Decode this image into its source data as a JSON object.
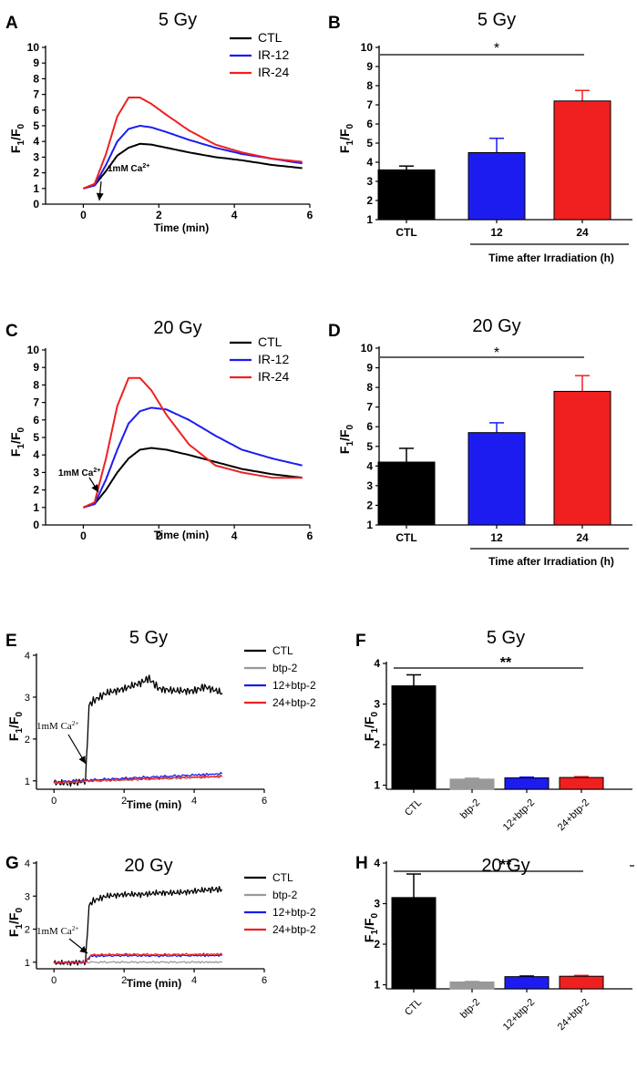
{
  "colors": {
    "ctl": "#000000",
    "ir12": "#1c1cf0",
    "ir24": "#f02020",
    "btp2": "#999999"
  },
  "chart_data": [
    {
      "panel": "A",
      "type": "line",
      "title": "5 Gy",
      "xlabel": "Time (min)",
      "ylabel": "F1/F0",
      "xlim": [
        -1,
        6
      ],
      "ylim": [
        0,
        10
      ],
      "xticks": [
        0,
        2,
        4,
        6
      ],
      "yticks": [
        0,
        1,
        2,
        3,
        4,
        5,
        6,
        7,
        8,
        9,
        10
      ],
      "annotation": "1mM Ca2+",
      "series": [
        {
          "name": "CTL",
          "color": "#000000",
          "x": [
            0,
            0.3,
            0.6,
            0.9,
            1.2,
            1.5,
            1.8,
            2.2,
            2.8,
            3.5,
            4.2,
            5,
            5.8
          ],
          "y": [
            1,
            1.2,
            2.1,
            3.1,
            3.6,
            3.85,
            3.8,
            3.6,
            3.3,
            3.0,
            2.8,
            2.5,
            2.3
          ]
        },
        {
          "name": "IR-12",
          "color": "#1c1cf0",
          "x": [
            0,
            0.3,
            0.6,
            0.9,
            1.2,
            1.5,
            1.8,
            2.2,
            2.8,
            3.5,
            4.2,
            5,
            5.8
          ],
          "y": [
            1,
            1.2,
            2.5,
            4.0,
            4.8,
            5.0,
            4.9,
            4.6,
            4.1,
            3.6,
            3.2,
            2.9,
            2.6
          ]
        },
        {
          "name": "IR-24",
          "color": "#f02020",
          "x": [
            0,
            0.3,
            0.6,
            0.9,
            1.2,
            1.5,
            1.8,
            2.2,
            2.8,
            3.5,
            4.2,
            5,
            5.8
          ],
          "y": [
            1,
            1.3,
            3.2,
            5.6,
            6.8,
            6.8,
            6.4,
            5.7,
            4.7,
            3.8,
            3.3,
            2.9,
            2.7
          ]
        }
      ]
    },
    {
      "panel": "B",
      "type": "bar",
      "title": "5 Gy",
      "ylabel": "F1/F0",
      "ylim": [
        1,
        10
      ],
      "yticks": [
        1,
        2,
        3,
        4,
        5,
        6,
        7,
        8,
        9,
        10
      ],
      "categories": [
        "CTL",
        "12",
        "24"
      ],
      "values": [
        3.6,
        4.5,
        7.2
      ],
      "errors": [
        0.2,
        0.75,
        0.55
      ],
      "bar_colors": [
        "#000000",
        "#1c1cf0",
        "#f02020"
      ],
      "xlabel": "Time after Irradiation (h)",
      "significance": "*"
    },
    {
      "panel": "C",
      "type": "line",
      "title": "20 Gy",
      "xlabel": "Time (min)",
      "ylabel": "F1/F0",
      "xlim": [
        -1,
        6
      ],
      "ylim": [
        0,
        10
      ],
      "xticks": [
        0,
        2,
        4,
        6
      ],
      "yticks": [
        0,
        1,
        2,
        3,
        4,
        5,
        6,
        7,
        8,
        9,
        10
      ],
      "annotation": "1mM Ca2+",
      "series": [
        {
          "name": "CTL",
          "color": "#000000",
          "x": [
            0,
            0.3,
            0.6,
            0.9,
            1.2,
            1.5,
            1.8,
            2.2,
            2.8,
            3.5,
            4.2,
            5,
            5.8
          ],
          "y": [
            1,
            1.2,
            2.0,
            3.0,
            3.8,
            4.3,
            4.4,
            4.3,
            4.0,
            3.6,
            3.2,
            2.9,
            2.7
          ]
        },
        {
          "name": "IR-12",
          "color": "#1c1cf0",
          "x": [
            0,
            0.3,
            0.6,
            0.9,
            1.2,
            1.5,
            1.8,
            2.2,
            2.8,
            3.5,
            4.2,
            5,
            5.8
          ],
          "y": [
            1,
            1.2,
            2.6,
            4.3,
            5.8,
            6.5,
            6.7,
            6.6,
            6.0,
            5.1,
            4.3,
            3.8,
            3.4
          ]
        },
        {
          "name": "IR-24",
          "color": "#f02020",
          "x": [
            0,
            0.3,
            0.6,
            0.9,
            1.2,
            1.5,
            1.8,
            2.2,
            2.8,
            3.5,
            4.2,
            5,
            5.8
          ],
          "y": [
            1,
            1.3,
            3.8,
            6.8,
            8.4,
            8.4,
            7.7,
            6.3,
            4.6,
            3.4,
            3.0,
            2.7,
            2.7
          ]
        }
      ]
    },
    {
      "panel": "D",
      "type": "bar",
      "title": "20 Gy",
      "ylabel": "F1/F0",
      "ylim": [
        1,
        10
      ],
      "yticks": [
        1,
        2,
        3,
        4,
        5,
        6,
        7,
        8,
        9,
        10
      ],
      "categories": [
        "CTL",
        "12",
        "24"
      ],
      "values": [
        4.2,
        5.7,
        7.8
      ],
      "errors": [
        0.7,
        0.5,
        0.8
      ],
      "bar_colors": [
        "#000000",
        "#1c1cf0",
        "#f02020"
      ],
      "xlabel": "Time after Irradiation (h)",
      "significance": "*"
    },
    {
      "panel": "E",
      "type": "line",
      "title": "5 Gy",
      "xlabel": "Time (min)",
      "ylabel": "F1/F0",
      "xlim": [
        -0.5,
        6
      ],
      "ylim": [
        0.8,
        4
      ],
      "xticks": [
        0,
        2,
        4,
        6
      ],
      "yticks": [
        1,
        2,
        3,
        4
      ],
      "annotation": "1mM Ca2+",
      "series": [
        {
          "name": "CTL",
          "color": "#000000",
          "x": [
            0,
            0.5,
            0.9,
            1.0,
            1.1,
            1.5,
            2.0,
            2.5,
            2.7,
            3.0,
            3.5,
            4.0,
            4.3,
            4.8
          ],
          "y": [
            0.95,
            0.95,
            1.0,
            2.8,
            2.9,
            3.1,
            3.2,
            3.35,
            3.45,
            3.2,
            3.15,
            3.15,
            3.25,
            3.1
          ]
        },
        {
          "name": "btp-2",
          "color": "#999999",
          "x": [
            0,
            1,
            2,
            3,
            4,
            4.8
          ],
          "y": [
            0.95,
            1.0,
            1.02,
            1.05,
            1.08,
            1.1
          ]
        },
        {
          "name": "12+btp-2",
          "color": "#1c1cf0",
          "x": [
            0,
            1,
            2,
            3,
            4,
            4.8
          ],
          "y": [
            0.97,
            1.02,
            1.06,
            1.1,
            1.14,
            1.17
          ]
        },
        {
          "name": "24+btp-2",
          "color": "#f02020",
          "x": [
            0,
            1,
            2,
            3,
            4,
            4.8
          ],
          "y": [
            0.96,
            1.0,
            1.03,
            1.06,
            1.09,
            1.11
          ]
        }
      ]
    },
    {
      "panel": "F",
      "type": "bar",
      "title": "5 Gy",
      "ylabel": "F1/F0",
      "ylim": [
        0.9,
        4
      ],
      "yticks": [
        1,
        2,
        3,
        4
      ],
      "categories": [
        "CTL",
        "btp-2",
        "12+btp-2",
        "24+btp-2"
      ],
      "values": [
        3.45,
        1.15,
        1.18,
        1.19
      ],
      "errors": [
        0.27,
        0.02,
        0.02,
        0.02
      ],
      "bar_colors": [
        "#000000",
        "#999999",
        "#1c1cf0",
        "#f02020"
      ],
      "significance": "**"
    },
    {
      "panel": "G",
      "type": "line",
      "title": "20 Gy",
      "xlabel": "Time (min)",
      "ylabel": "F1/F0",
      "xlim": [
        -0.5,
        6
      ],
      "ylim": [
        0.8,
        4
      ],
      "xticks": [
        0,
        2,
        4,
        6
      ],
      "yticks": [
        1,
        2,
        3,
        4
      ],
      "annotation": "1mM Ca2+",
      "series": [
        {
          "name": "CTL",
          "color": "#000000",
          "x": [
            0,
            0.5,
            0.9,
            1.0,
            1.1,
            1.5,
            2.0,
            2.5,
            3.0,
            3.5,
            4.0,
            4.5,
            4.8
          ],
          "y": [
            0.98,
            0.98,
            1.0,
            2.7,
            2.85,
            3.0,
            3.05,
            3.05,
            3.1,
            3.1,
            3.15,
            3.2,
            3.2
          ]
        },
        {
          "name": "btp-2",
          "color": "#999999",
          "x": [
            0,
            1,
            2,
            3,
            4,
            4.8
          ],
          "y": [
            0.98,
            1.0,
            1.0,
            1.0,
            1.0,
            1.0
          ]
        },
        {
          "name": "12+btp-2",
          "color": "#1c1cf0",
          "x": [
            0,
            0.9,
            1.05,
            2,
            3,
            4,
            4.8
          ],
          "y": [
            0.98,
            1.0,
            1.18,
            1.2,
            1.19,
            1.2,
            1.2
          ]
        },
        {
          "name": "24+btp-2",
          "color": "#f02020",
          "x": [
            0,
            0.9,
            1.05,
            2,
            3,
            4,
            4.8
          ],
          "y": [
            0.98,
            1.0,
            1.22,
            1.24,
            1.23,
            1.24,
            1.24
          ]
        }
      ]
    },
    {
      "panel": "H",
      "type": "bar",
      "title": "20 Gy",
      "ylabel": "F1/F0",
      "ylim": [
        0.9,
        4
      ],
      "yticks": [
        1,
        2,
        3,
        4
      ],
      "categories": [
        "CTL",
        "btp-2",
        "12+btp-2",
        "24+btp-2"
      ],
      "values": [
        3.15,
        1.07,
        1.2,
        1.21
      ],
      "errors": [
        0.58,
        0.01,
        0.02,
        0.02
      ],
      "bar_colors": [
        "#000000",
        "#999999",
        "#1c1cf0",
        "#f02020"
      ],
      "significance": "**"
    }
  ]
}
